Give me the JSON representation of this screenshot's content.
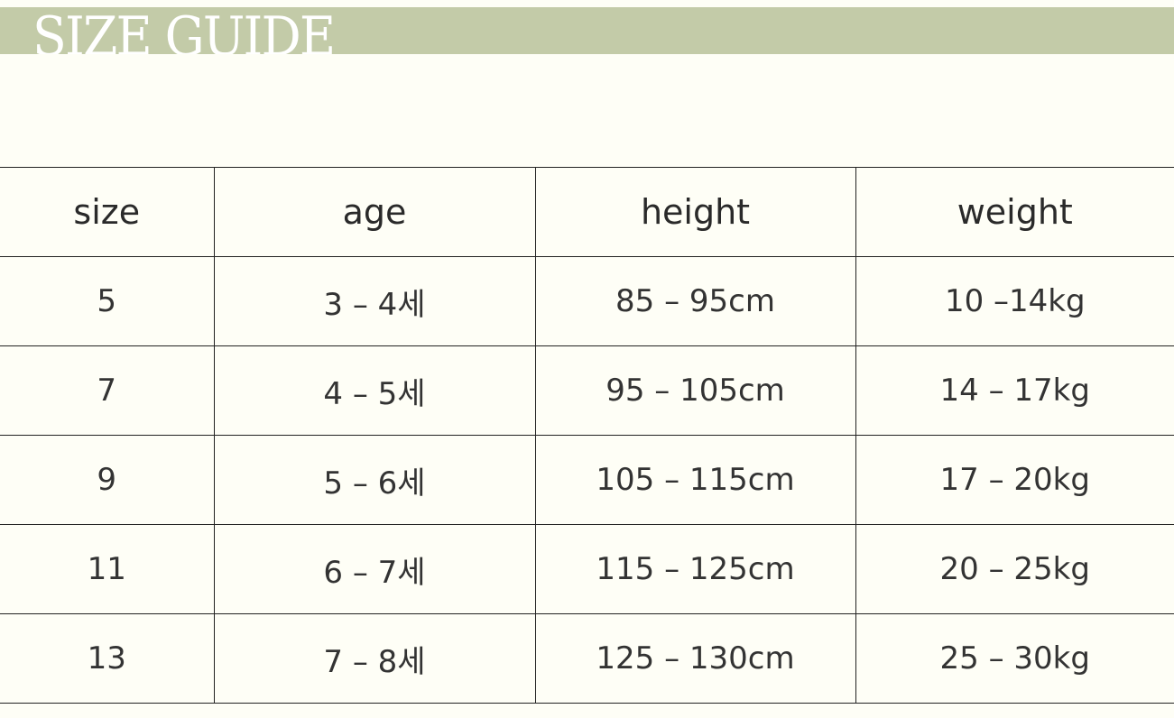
{
  "title": "SIZE GUIDE",
  "colors": {
    "band": "#c3cba8",
    "background": "#fefef6",
    "title_text": "#ffffff"
  },
  "table": {
    "headers": [
      "size",
      "age",
      "height",
      "weight"
    ],
    "rows": [
      [
        "5",
        "3 – 4세",
        "85 – 95cm",
        "10 –14kg"
      ],
      [
        "7",
        "4 – 5세",
        "95 – 105cm",
        "14 – 17kg"
      ],
      [
        "9",
        "5 – 6세",
        "105 – 115cm",
        "17 – 20kg"
      ],
      [
        "11",
        "6 – 7세",
        "115 – 125cm",
        "20 – 25kg"
      ],
      [
        "13",
        "7 – 8세",
        "125 – 130cm",
        "25 – 30kg"
      ]
    ]
  }
}
